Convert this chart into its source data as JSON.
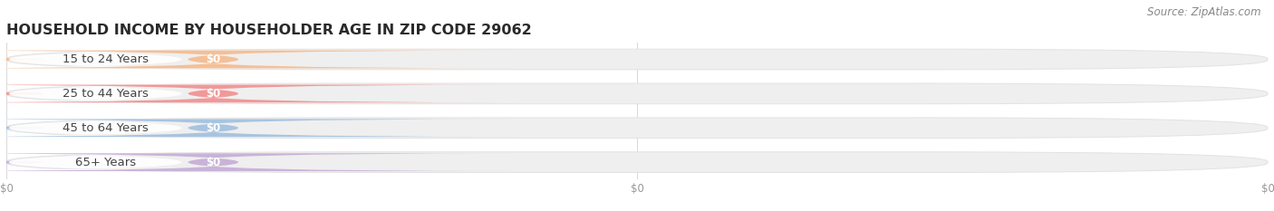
{
  "title": "HOUSEHOLD INCOME BY HOUSEHOLDER AGE IN ZIP CODE 29062",
  "source": "Source: ZipAtlas.com",
  "categories": [
    "15 to 24 Years",
    "25 to 44 Years",
    "45 to 64 Years",
    "65+ Years"
  ],
  "values": [
    0,
    0,
    0,
    0
  ],
  "bar_colors": [
    "#f5bf96",
    "#f29898",
    "#a8c4e0",
    "#c9b3d9"
  ],
  "track_color": "#efefef",
  "track_border_color": "#e2e2e2",
  "background_color": "#ffffff",
  "title_fontsize": 11.5,
  "source_fontsize": 8.5,
  "label_fontsize": 9.5,
  "value_fontsize": 8.5,
  "value_label": "$0",
  "figsize": [
    14.06,
    2.33
  ],
  "dpi": 100
}
